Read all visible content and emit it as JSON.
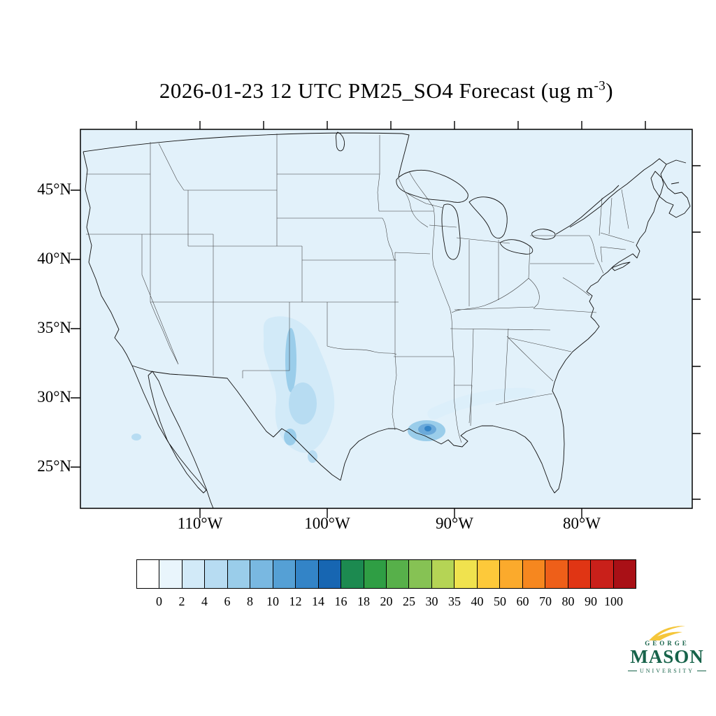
{
  "title": {
    "prefix": "2026-01-23 12 UTC PM25_SO4 Forecast (ug m",
    "superscript": "-3",
    "suffix": ")"
  },
  "map": {
    "region": "Continental United States with portions of Canada and Mexico",
    "fill_color": "#e2f1fa",
    "outline_color": "#111111",
    "state_line_color": "#3a3a3a",
    "lat_labels": [
      "45°N",
      "40°N",
      "35°N",
      "30°N",
      "25°N"
    ],
    "lon_labels": [
      "110°W",
      "100°W",
      "90°W",
      "80°W"
    ]
  },
  "colorbar": {
    "labels": [
      "0",
      "2",
      "4",
      "6",
      "8",
      "10",
      "12",
      "14",
      "16",
      "18",
      "20",
      "25",
      "30",
      "35",
      "40",
      "50",
      "60",
      "70",
      "80",
      "90",
      "100"
    ],
    "colors": [
      "#ffffff",
      "#e9f5fc",
      "#d2eaf8",
      "#b7dcf2",
      "#9acdea",
      "#79b8e1",
      "#55a0d5",
      "#3384c7",
      "#1766b2",
      "#1c8a50",
      "#2f9e44",
      "#57b04a",
      "#86c254",
      "#b5d455",
      "#f0e24e",
      "#fdc93a",
      "#fbaa2c",
      "#f6871f",
      "#ee5f19",
      "#e03514",
      "#c9201a",
      "#a91016"
    ]
  },
  "logo": {
    "line1": "GEORGE",
    "line2": "MASON",
    "line3": "UNIVERSITY",
    "green": "#17634a",
    "gold": "#f5c63a"
  },
  "chart_data": {
    "type": "heatmap",
    "title": "2026-01-23 12 UTC PM25_SO4 Forecast (ug m-3)",
    "variable": "PM25_SO4",
    "units": "ug m-3",
    "valid_time": "2026-01-23 12 UTC",
    "projection_region": "CONUS",
    "lat_axis_ticks": [
      "25°N",
      "30°N",
      "35°N",
      "40°N",
      "45°N"
    ],
    "lon_axis_ticks": [
      "110°W",
      "100°W",
      "90°W",
      "80°W"
    ],
    "color_levels": [
      0,
      2,
      4,
      6,
      8,
      10,
      12,
      14,
      16,
      18,
      20,
      25,
      30,
      35,
      40,
      50,
      60,
      70,
      80,
      90,
      100
    ],
    "legend_position": "bottom",
    "observed_features": [
      {
        "area": "most of domain",
        "approx_value": "0-2"
      },
      {
        "area": "west Texas / eastern New Mexico",
        "approx_value": "2-6"
      },
      {
        "area": "central Texas scattered patches",
        "approx_value": "2-4"
      },
      {
        "area": "Louisiana Gulf coast plume",
        "approx_value": "8-12"
      },
      {
        "area": "faint band toward Georgia / Southeast",
        "approx_value": "2"
      }
    ]
  }
}
